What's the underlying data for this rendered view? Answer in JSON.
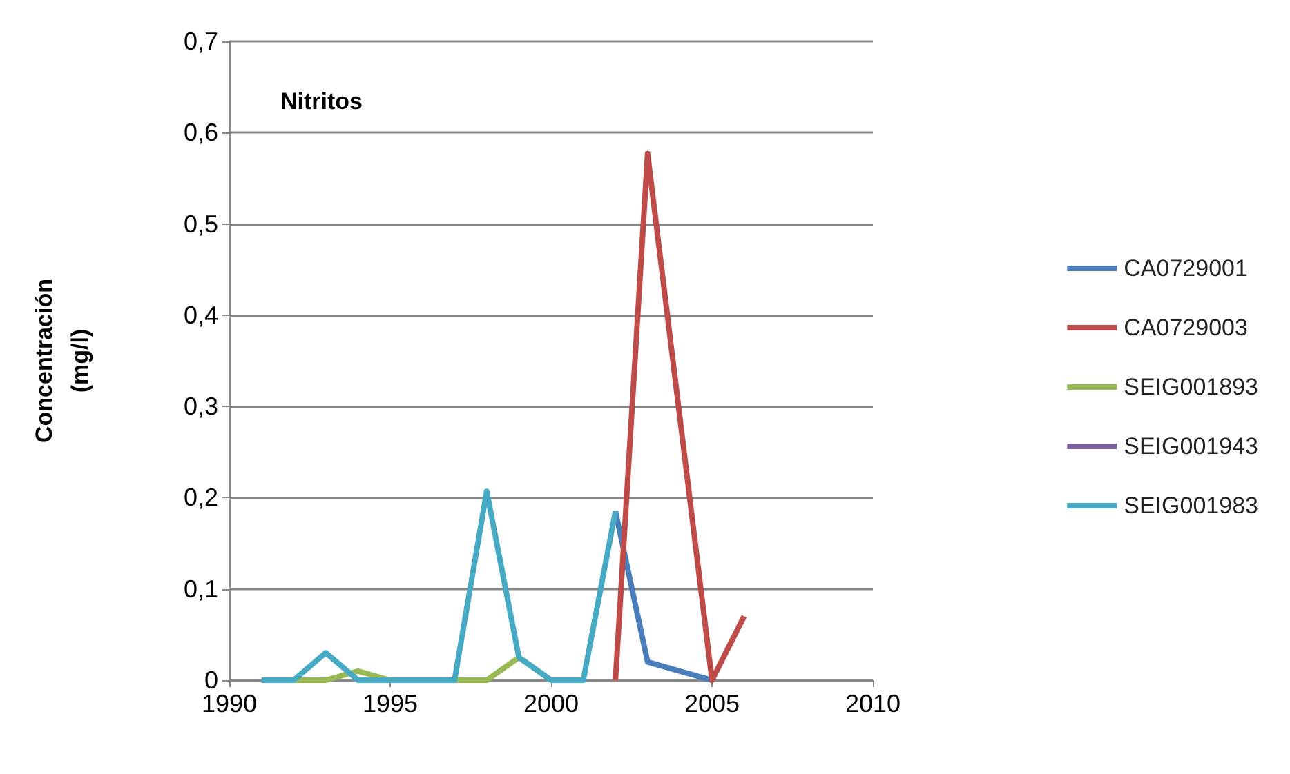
{
  "chart_data": {
    "type": "line",
    "title": "Nitritos",
    "ylabel": "Concentración\n(mg/l)",
    "xlim": [
      1990,
      2010
    ],
    "xticks": [
      1990,
      1995,
      2000,
      2005,
      2010
    ],
    "ylim": [
      0,
      0.7
    ],
    "yticks": [
      {
        "value": 0,
        "label": "0"
      },
      {
        "value": 0.1,
        "label": "0,1"
      },
      {
        "value": 0.2,
        "label": "0,2"
      },
      {
        "value": 0.3,
        "label": "0,3"
      },
      {
        "value": 0.4,
        "label": "0,4"
      },
      {
        "value": 0.5,
        "label": "0,5"
      },
      {
        "value": 0.6,
        "label": "0,6"
      },
      {
        "value": 0.7,
        "label": "0,7"
      }
    ],
    "grid": "y",
    "legend": "right",
    "marker": "none",
    "line_style": "solid",
    "series": [
      {
        "name": "CA0729001",
        "color": "#4a7ebb",
        "x": [
          2002,
          2003,
          2005
        ],
        "values": [
          0.185,
          0.02,
          0
        ]
      },
      {
        "name": "CA0729003",
        "color": "#be4b48",
        "x": [
          2002,
          2003,
          2005,
          2006
        ],
        "values": [
          0,
          0.577,
          0,
          0.07
        ]
      },
      {
        "name": "SEIG001893",
        "color": "#98b954",
        "x": [
          1992,
          1993,
          1994,
          1995,
          1996,
          1997,
          1998,
          1999,
          2000
        ],
        "values": [
          0,
          0,
          0.01,
          0,
          0,
          0,
          0,
          0.025,
          0
        ]
      },
      {
        "name": "SEIG001943",
        "color": "#7d60a0"
      },
      {
        "name": "SEIG001983",
        "color": "#46aac5",
        "x": [
          1991,
          1992,
          1993,
          1994,
          1995,
          1996,
          1997,
          1998,
          1999,
          2000,
          2001,
          2002
        ],
        "values": [
          0,
          0,
          0.03,
          0,
          0,
          0,
          0,
          0.207,
          0.025,
          0,
          0,
          0.185
        ]
      }
    ]
  }
}
